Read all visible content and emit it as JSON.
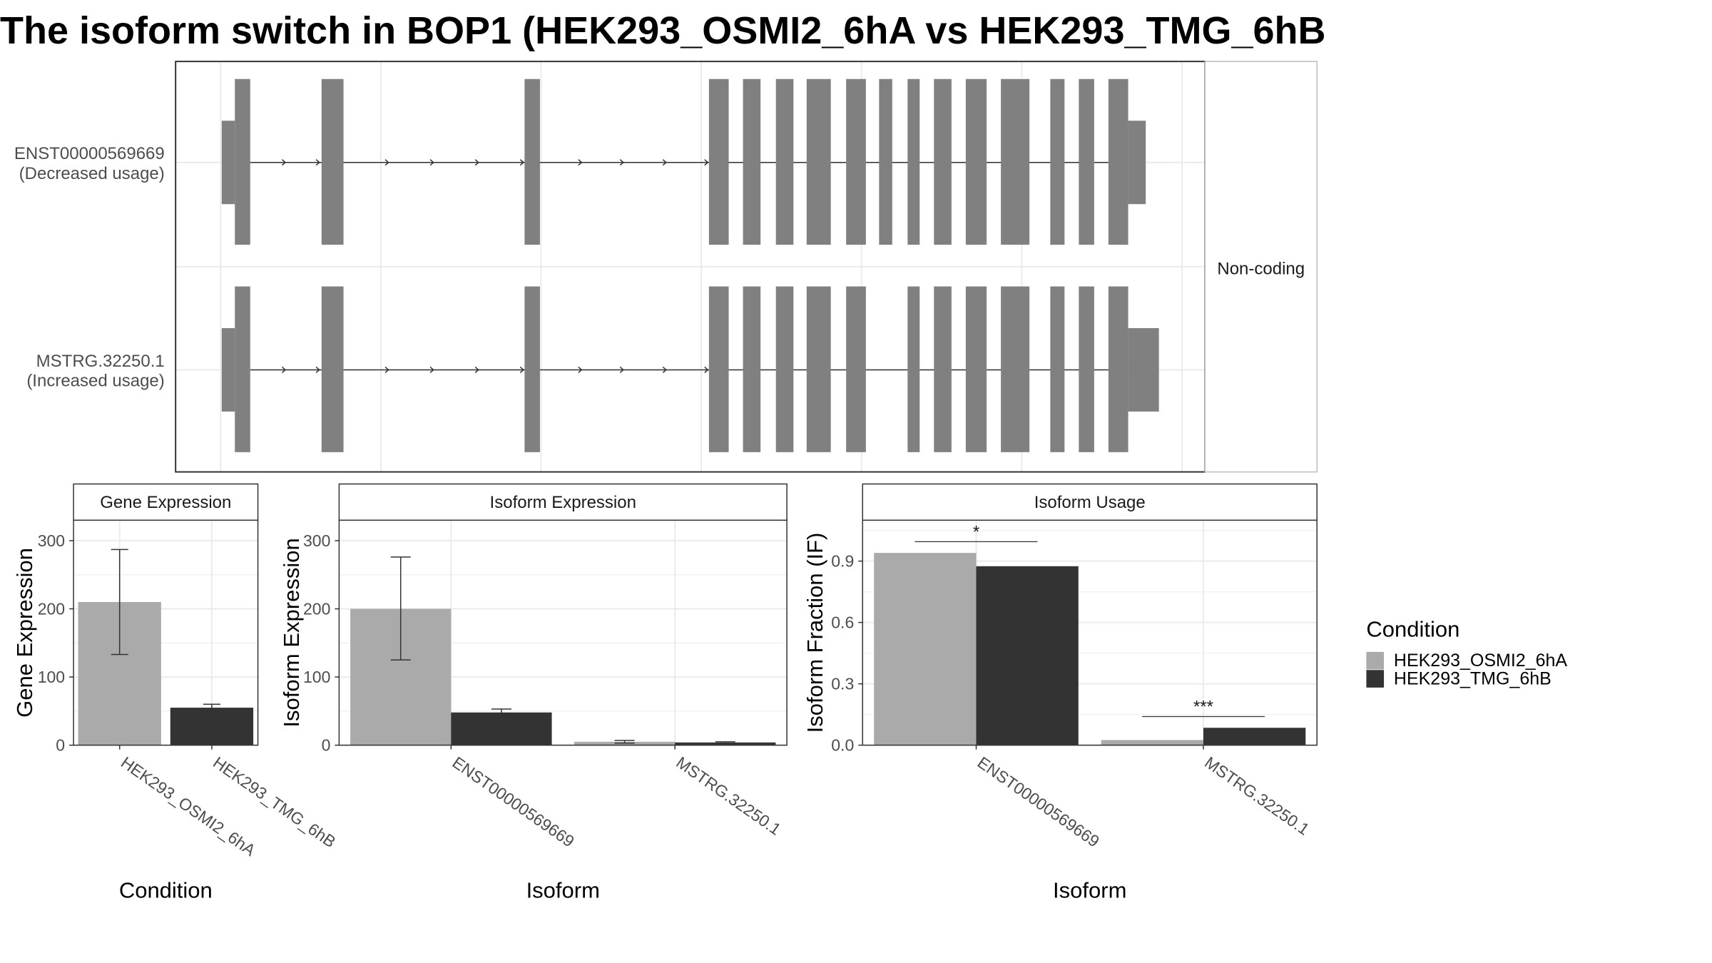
{
  "title": "The isoform switch in BOP1 (HEK293_OSMI2_6hA vs HEK293_TMG_6hB",
  "colors": {
    "condition_a": "#aaaaaa",
    "condition_b": "#333333",
    "exon": "#808080",
    "grid": "#ebebeb",
    "strip_fill": "#ffffff"
  },
  "chart_data": [
    {
      "type": "gene-structure",
      "panel": "transcript-structure",
      "strip_label": "Non-coding",
      "transcripts": [
        {
          "id": "ENST00000569669",
          "label": "ENST00000569669",
          "usage_label": "(Decreased usage)"
        },
        {
          "id": "MSTRG.32250.1",
          "label": "MSTRG.32250.1",
          "usage_label": "(Increased usage)"
        }
      ]
    },
    {
      "type": "bar",
      "panel": "gene-expression",
      "strip_title": "Gene Expression",
      "xlabel": "Condition",
      "ylabel": "Gene Expression",
      "ylim": [
        0,
        330
      ],
      "yticks": [
        0,
        100,
        200,
        300
      ],
      "categories": [
        "HEK293_OSMI2_6hA",
        "HEK293_TMG_6hB"
      ],
      "values": [
        210,
        55
      ],
      "errors": [
        [
          133,
          287
        ],
        [
          50,
          60
        ]
      ]
    },
    {
      "type": "bar",
      "panel": "isoform-expression",
      "strip_title": "Isoform Expression",
      "xlabel": "Isoform",
      "ylabel": "Isoform Expression",
      "ylim": [
        0,
        330
      ],
      "yticks": [
        0,
        100,
        200,
        300
      ],
      "categories": [
        "ENST00000569669",
        "MSTRG.32250.1"
      ],
      "series": [
        {
          "values": [
            200,
            5
          ],
          "errors": [
            [
              125,
              276
            ],
            [
              3,
              7
            ]
          ]
        },
        {
          "values": [
            48,
            4
          ],
          "errors": [
            [
              44,
              53
            ],
            [
              3,
              5
            ]
          ]
        }
      ]
    },
    {
      "type": "bar",
      "panel": "isoform-usage",
      "strip_title": "Isoform Usage",
      "xlabel": "Isoform",
      "ylabel": "Isoform Fraction (IF)",
      "ylim": [
        0,
        1.1
      ],
      "yticks": [
        0.0,
        0.3,
        0.6,
        0.9
      ],
      "ytick_labels": [
        "0.0",
        "0.3",
        "0.6",
        "0.9"
      ],
      "categories": [
        "ENST00000569669",
        "MSTRG.32250.1"
      ],
      "series": [
        {
          "values": [
            0.94,
            0.025
          ]
        },
        {
          "values": [
            0.875,
            0.085
          ]
        }
      ],
      "significance": [
        "*",
        "***"
      ]
    }
  ],
  "legend": {
    "title": "Condition",
    "items": [
      "HEK293_OSMI2_6hA",
      "HEK293_TMG_6hB"
    ]
  }
}
